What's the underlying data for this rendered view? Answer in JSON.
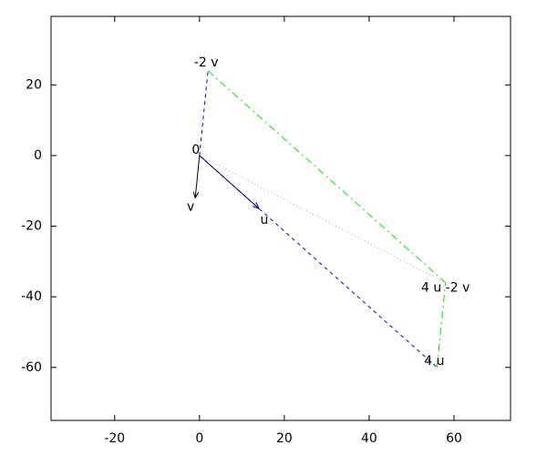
{
  "chart_data": {
    "type": "vector",
    "xlim": [
      -35,
      73.33
    ],
    "ylim": [
      -75,
      39.4
    ],
    "xticks": [
      -20,
      0,
      20,
      40,
      60
    ],
    "yticks": [
      20,
      0,
      -20,
      -40,
      -60
    ],
    "lines": [
      {
        "x": [
          0,
          2
        ],
        "y": [
          0,
          24
        ],
        "color": "#0000ff",
        "style": "dashed",
        "arrow": false
      },
      {
        "x": [
          0,
          56
        ],
        "y": [
          0,
          -60
        ],
        "color": "#0000ff",
        "style": "dashed",
        "arrow": false
      },
      {
        "x": [
          2,
          58
        ],
        "y": [
          24,
          -36
        ],
        "color": "#00ee00",
        "style": "dashdot",
        "arrow": false
      },
      {
        "x": [
          56,
          58
        ],
        "y": [
          -60,
          -36
        ],
        "color": "#00ee00",
        "style": "dashdot",
        "arrow": false
      },
      {
        "x": [
          0,
          58
        ],
        "y": [
          0,
          -36
        ],
        "color": "#c0a0a0",
        "style": "dotted",
        "arrow": false
      },
      {
        "x": [
          0,
          14
        ],
        "y": [
          0,
          -15
        ],
        "color": "#000080",
        "style": "solid",
        "arrow": true
      },
      {
        "x": [
          0,
          -1
        ],
        "y": [
          0,
          -12
        ],
        "color": "#000000",
        "style": "solid",
        "arrow": true
      }
    ],
    "labels": [
      {
        "text": "0",
        "x": 0,
        "y": 0
      },
      {
        "text": "u",
        "x": 14,
        "y": -15
      },
      {
        "text": "v",
        "x": -1,
        "y": -12
      },
      {
        "text": "-2 v",
        "x": 2,
        "y": 24
      },
      {
        "text": "4 u",
        "x": 56,
        "y": -60
      },
      {
        "text": "4 u -2 v",
        "x": 58,
        "y": -36
      }
    ]
  }
}
